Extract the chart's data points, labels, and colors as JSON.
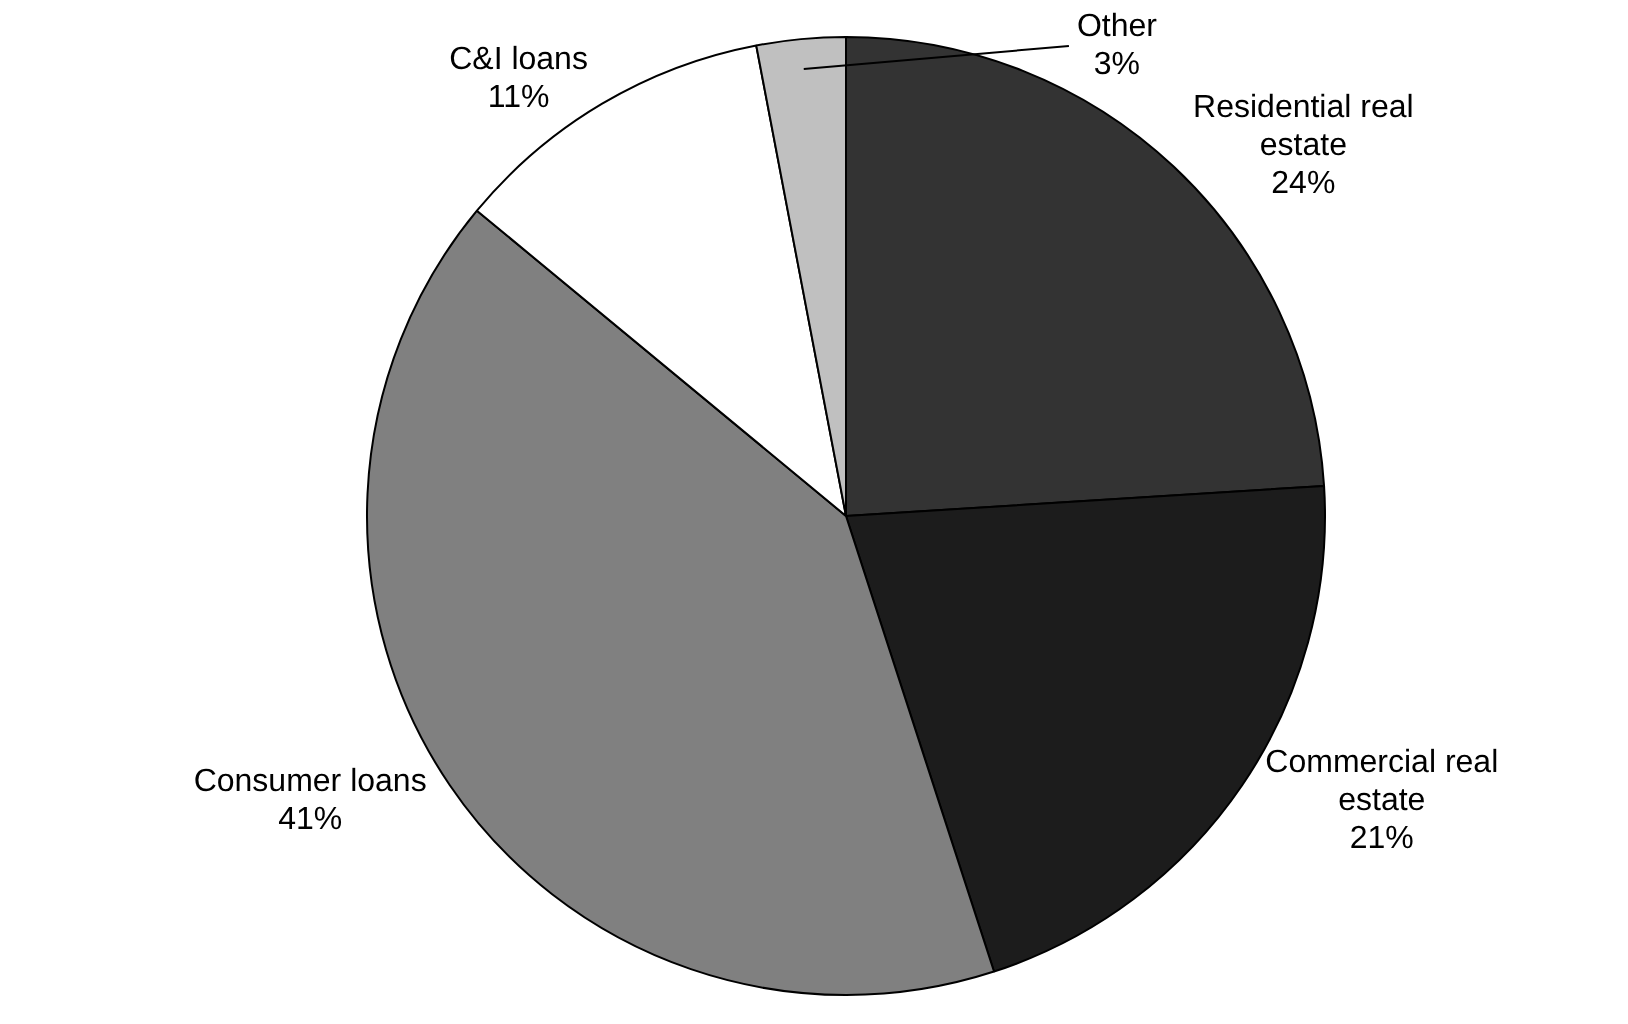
{
  "chart_data": {
    "type": "pie",
    "categories": [
      "Residential real estate",
      "Commercial real estate",
      "Consumer loans",
      "C&I loans",
      "Other"
    ],
    "values": [
      24,
      21,
      41,
      11,
      3
    ],
    "colors": [
      "#333333",
      "#1c1c1c",
      "#808080",
      "#ffffff",
      "#c0c0c0"
    ],
    "value_labels": [
      "24%",
      "21%",
      "41%",
      "11%",
      "3%"
    ],
    "legend": false
  }
}
